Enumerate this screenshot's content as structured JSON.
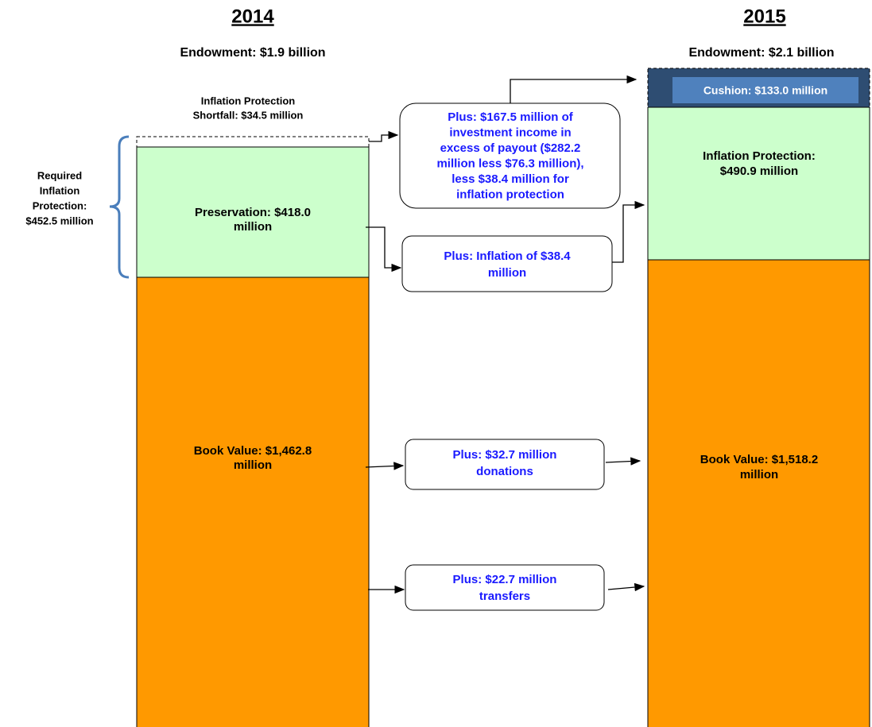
{
  "year_2014": {
    "year": "2014",
    "endowment": "Endowment: $1.9 billion",
    "shortfall": [
      "Inflation Protection",
      "Shortfall: $34.5 million"
    ],
    "required": [
      "Required",
      "Inflation",
      "Protection:",
      "$452.5 million"
    ],
    "preservation": [
      "Preservation:  $418.0",
      "million"
    ],
    "book_value": [
      "Book Value: $1,462.8",
      "million"
    ]
  },
  "year_2015": {
    "year": "2015",
    "endowment": "Endowment: $2.1 billion",
    "cushion": "Cushion: $133.0 million",
    "inflation_protection": [
      "Inflation Protection:",
      "$490.9 million"
    ],
    "book_value": [
      "Book Value: $1,518.2",
      "million"
    ]
  },
  "flows": {
    "investment": [
      "Plus: $167.5 million of",
      "investment income in",
      "excess of payout ($282.2",
      "million less $76.3 million),",
      "less $38.4 million for",
      "inflation protection"
    ],
    "inflation": [
      "Plus: Inflation of $38.4",
      "million"
    ],
    "donations": [
      "Plus: $32.7 million",
      "donations"
    ],
    "transfers": [
      "Plus: $22.7 million",
      "transfers"
    ]
  }
}
